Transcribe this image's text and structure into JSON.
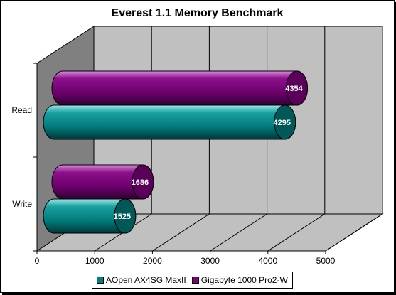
{
  "chart_data": {
    "type": "bar",
    "orientation": "horizontal",
    "title": "Everest 1.1 Memory Benchmark",
    "categories": [
      "Read",
      "Write"
    ],
    "series": [
      {
        "name": "AOpen AX4SG MaxII",
        "color": "#007f7f",
        "values": [
          4295,
          1525
        ]
      },
      {
        "name": "Gigabyte 1000 Pro2-W",
        "color": "#800080",
        "values": [
          4354,
          1686
        ]
      }
    ],
    "xticks": [
      "0",
      "1000",
      "2000",
      "3000",
      "4000",
      "5000"
    ],
    "xlim": [
      0,
      5000
    ],
    "grid": true,
    "legend": "bottom",
    "data_labels": true,
    "style": "3d-cylinder"
  }
}
